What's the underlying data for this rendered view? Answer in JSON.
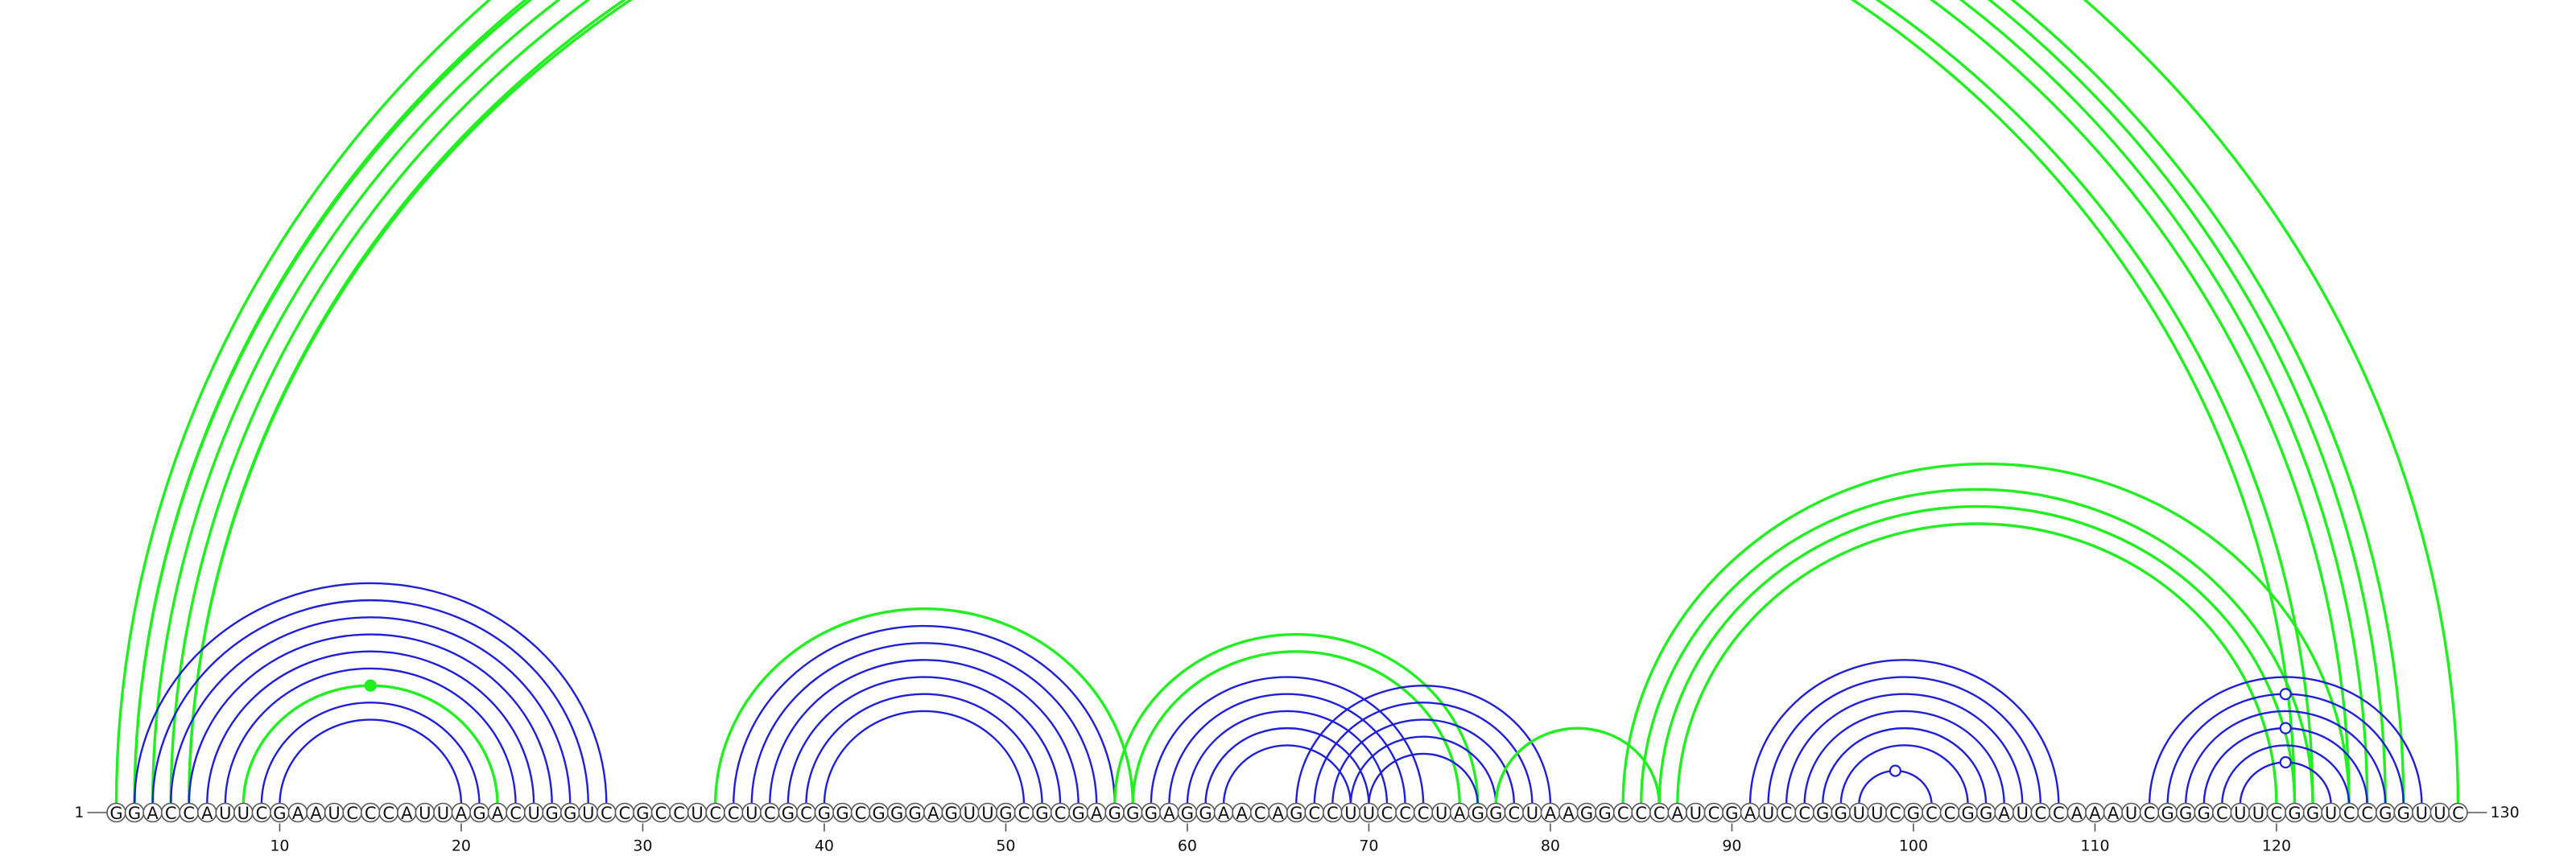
{
  "sequence": "GGACCAUUCGAAUCCCAUUAGACUGGUCCGCCUCCUCGCGGCGGGAGUUGCGCGAGGGAGGAACAGCCUUCCCUAGGCUAAGGCCCAUCGAUCCGGUUCGCCGGAUCCAAAUCGGGCUUCGGUCCGGUUC",
  "start_label": "1",
  "end_label": "130",
  "ticks": [
    {
      "pos": 10,
      "label": "10"
    },
    {
      "pos": 20,
      "label": "20"
    },
    {
      "pos": 30,
      "label": "30"
    },
    {
      "pos": 40,
      "label": "40"
    },
    {
      "pos": 50,
      "label": "50"
    },
    {
      "pos": 60,
      "label": "60"
    },
    {
      "pos": 70,
      "label": "70"
    },
    {
      "pos": 80,
      "label": "80"
    },
    {
      "pos": 90,
      "label": "90"
    },
    {
      "pos": 100,
      "label": "100"
    },
    {
      "pos": 110,
      "label": "110"
    },
    {
      "pos": 120,
      "label": "120"
    }
  ],
  "colors": {
    "green": "#22ee22",
    "blue": "#1f1fd6"
  },
  "arcs": [
    {
      "i": 1,
      "j": 130,
      "color": "green"
    },
    {
      "i": 2,
      "j": 127,
      "color": "green"
    },
    {
      "i": 2,
      "j": 126,
      "color": "green"
    },
    {
      "i": 3,
      "j": 125,
      "color": "green"
    },
    {
      "i": 4,
      "j": 124,
      "color": "green"
    },
    {
      "i": 5,
      "j": 122,
      "color": "green"
    },
    {
      "i": 5,
      "j": 121,
      "color": "green"
    },
    {
      "i": 2,
      "j": 28,
      "color": "blue"
    },
    {
      "i": 3,
      "j": 27,
      "color": "blue"
    },
    {
      "i": 4,
      "j": 26,
      "color": "blue"
    },
    {
      "i": 5,
      "j": 25,
      "color": "blue"
    },
    {
      "i": 6,
      "j": 24,
      "color": "blue"
    },
    {
      "i": 7,
      "j": 23,
      "color": "blue"
    },
    {
      "i": 8,
      "j": 22,
      "color": "green"
    },
    {
      "i": 9,
      "j": 21,
      "color": "blue"
    },
    {
      "i": 10,
      "j": 20,
      "color": "blue"
    },
    {
      "i": 34,
      "j": 57,
      "color": "green"
    },
    {
      "i": 35,
      "j": 56,
      "color": "blue"
    },
    {
      "i": 36,
      "j": 55,
      "color": "blue"
    },
    {
      "i": 37,
      "j": 54,
      "color": "blue"
    },
    {
      "i": 38,
      "j": 53,
      "color": "blue"
    },
    {
      "i": 39,
      "j": 52,
      "color": "blue"
    },
    {
      "i": 40,
      "j": 51,
      "color": "blue"
    },
    {
      "i": 56,
      "j": 76,
      "color": "green"
    },
    {
      "i": 57,
      "j": 75,
      "color": "green"
    },
    {
      "i": 58,
      "j": 73,
      "color": "blue"
    },
    {
      "i": 59,
      "j": 72,
      "color": "blue"
    },
    {
      "i": 60,
      "j": 71,
      "color": "blue"
    },
    {
      "i": 61,
      "j": 70,
      "color": "blue"
    },
    {
      "i": 62,
      "j": 69,
      "color": "blue"
    },
    {
      "i": 66,
      "j": 80,
      "color": "blue"
    },
    {
      "i": 67,
      "j": 79,
      "color": "blue"
    },
    {
      "i": 68,
      "j": 78,
      "color": "blue"
    },
    {
      "i": 69,
      "j": 77,
      "color": "blue"
    },
    {
      "i": 70,
      "j": 76,
      "color": "blue"
    },
    {
      "i": 77,
      "j": 86,
      "color": "green"
    },
    {
      "i": 84,
      "j": 124,
      "color": "green"
    },
    {
      "i": 85,
      "j": 122,
      "color": "green"
    },
    {
      "i": 86,
      "j": 121,
      "color": "green"
    },
    {
      "i": 87,
      "j": 120,
      "color": "green"
    },
    {
      "i": 91,
      "j": 108,
      "color": "blue"
    },
    {
      "i": 92,
      "j": 107,
      "color": "blue"
    },
    {
      "i": 93,
      "j": 106,
      "color": "blue"
    },
    {
      "i": 94,
      "j": 105,
      "color": "blue"
    },
    {
      "i": 95,
      "j": 104,
      "color": "blue"
    },
    {
      "i": 96,
      "j": 103,
      "color": "blue"
    },
    {
      "i": 97,
      "j": 101,
      "color": "blue"
    },
    {
      "i": 113,
      "j": 128,
      "color": "blue"
    },
    {
      "i": 114,
      "j": 127,
      "color": "blue"
    },
    {
      "i": 115,
      "j": 126,
      "color": "blue"
    },
    {
      "i": 116,
      "j": 125,
      "color": "blue"
    },
    {
      "i": 117,
      "j": 124,
      "color": "blue"
    },
    {
      "i": 118,
      "j": 123,
      "color": "blue"
    }
  ],
  "arc_markers": [
    {
      "i": 1,
      "j": 130,
      "type": "open",
      "color": "green"
    },
    {
      "i": 8,
      "j": 22,
      "type": "filled",
      "color": "green"
    },
    {
      "i": 114,
      "j": 127,
      "type": "open",
      "color": "blue"
    },
    {
      "i": 116,
      "j": 125,
      "type": "open",
      "color": "blue"
    },
    {
      "i": 118,
      "j": 123,
      "type": "open",
      "color": "blue"
    },
    {
      "i": 97,
      "j": 101,
      "type": "open",
      "color": "blue"
    }
  ]
}
